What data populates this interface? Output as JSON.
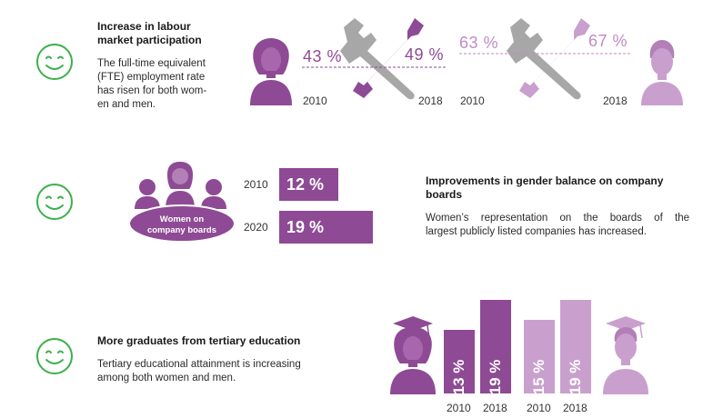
{
  "sections": {
    "labour": {
      "heading_line1": "Increase in labour",
      "heading_line2": "market participation",
      "body_lines": [
        "The full-time equivalent",
        "(FTE) employment rate",
        "has risen for both wom-",
        "en and men."
      ],
      "women": {
        "value_2010": "43 %",
        "value_2018": "49 %",
        "year_start": "2010",
        "year_end": "2018"
      },
      "men": {
        "value_2010": "63 %",
        "value_2018": "67 %",
        "year_start": "2010",
        "year_end": "2018"
      }
    },
    "boards": {
      "badge_line1": "Women on",
      "badge_line2": "company boards",
      "rows": [
        {
          "year": "2010",
          "value": "12 %",
          "fraction": 0.12
        },
        {
          "year": "2020",
          "value": "19 %",
          "fraction": 0.19
        }
      ],
      "heading_line1": "Improvements in gender balance on company",
      "heading_line2": "boards",
      "body_lines": [
        "Women’s representation on the boards of the",
        "largest publicly listed companies has increased."
      ]
    },
    "graduates": {
      "heading": "More graduates from tertiary education",
      "body_lines": [
        "Tertiary educational attainment is increasing",
        "among both women and men."
      ],
      "women_bars": [
        {
          "year": "2010",
          "value": "13 %"
        },
        {
          "year": "2018",
          "value": "19 %"
        }
      ],
      "men_bars": [
        {
          "year": "2010",
          "value": "15 %"
        },
        {
          "year": "2018",
          "value": "19 %"
        }
      ]
    }
  },
  "colors": {
    "smiley": "#3cb04a",
    "dark_purple": "#8e4a94",
    "light_purple": "#c9a0cd"
  },
  "icons": [
    "smiley-icon",
    "woman-icon",
    "man-icon",
    "wrench-screwdriver-icon",
    "group-icon",
    "graduate-woman-icon",
    "graduate-man-icon"
  ]
}
